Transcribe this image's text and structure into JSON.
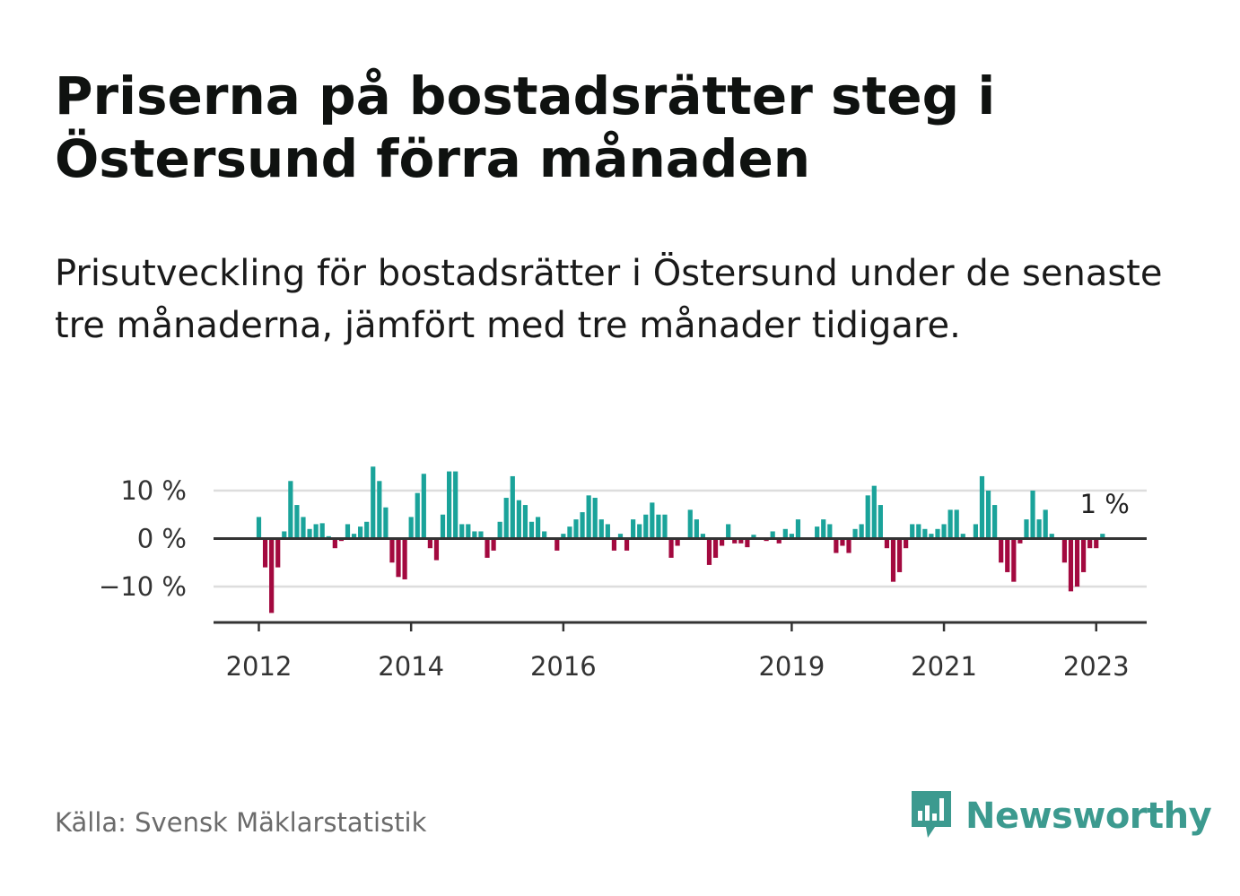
{
  "title": "Priserna på bostadsrätter steg i Östersund förra månaden",
  "subtitle": "Prisutveckling för bostadsrätter i Östersund under de senaste tre månaderna, jämfört med tre månader tidigare.",
  "source": "Källa: Svensk Mäklarstatistik",
  "brand": {
    "name": "Newsworthy",
    "icon": "newsworthy-logo-icon"
  },
  "colors": {
    "positive": "#1aa39a",
    "negative": "#a3093f",
    "axis": "#333333",
    "grid": "#dddddd",
    "brand": "#3c9a8f"
  },
  "chart_data": {
    "type": "bar",
    "title": "",
    "xlabel": "",
    "ylabel": "",
    "ylim": [
      -17,
      15
    ],
    "y_ticks": [
      {
        "value": 10,
        "label": "10 %"
      },
      {
        "value": 0,
        "label": "0 %"
      },
      {
        "value": -10,
        "label": "−10 %"
      }
    ],
    "x_ticks": [
      {
        "index": 0,
        "label": "2012"
      },
      {
        "index": 24,
        "label": "2014"
      },
      {
        "index": 48,
        "label": "2016"
      },
      {
        "index": 84,
        "label": "2019"
      },
      {
        "index": 108,
        "label": "2021"
      },
      {
        "index": 132,
        "label": "2023"
      }
    ],
    "grid": true,
    "annotation": {
      "index": 133,
      "label": "1 %"
    },
    "start": "2012-01",
    "values": [
      4.5,
      -6,
      -15.5,
      -6,
      1.5,
      12,
      7,
      4.5,
      2,
      3,
      3.2,
      0.5,
      -2,
      -0.5,
      3,
      1,
      2.5,
      3.5,
      15,
      12,
      6.5,
      -5,
      -8,
      -8.5,
      4.5,
      9.5,
      13.5,
      -2,
      -4.5,
      5,
      14,
      14,
      3,
      3,
      1.5,
      1.5,
      -4,
      -2.5,
      3.5,
      8.5,
      13,
      8,
      7,
      3.5,
      4.5,
      1.5,
      0,
      -2.5,
      1,
      2.5,
      4,
      5.5,
      9,
      8.5,
      4,
      3,
      -2.5,
      1,
      -2.5,
      4,
      3,
      5,
      7.5,
      5,
      5,
      -4,
      -1.5,
      0,
      6,
      4,
      1,
      -5.5,
      -4,
      -1.5,
      3,
      -1,
      -1,
      -1.8,
      0.8,
      0,
      -0.5,
      1.5,
      -1,
      2,
      1,
      4,
      0,
      0,
      2.5,
      4,
      3,
      -3,
      -1.5,
      -3,
      2,
      3,
      9,
      11,
      7,
      -2,
      -9,
      -7,
      -2,
      3,
      3,
      2,
      1,
      2,
      3,
      6,
      6,
      1,
      0,
      3,
      13,
      10,
      7,
      -5,
      -7,
      -9,
      -1,
      4,
      10,
      4,
      6,
      1,
      0,
      -5,
      -11,
      -10,
      -7,
      -2,
      -2,
      1
    ]
  }
}
